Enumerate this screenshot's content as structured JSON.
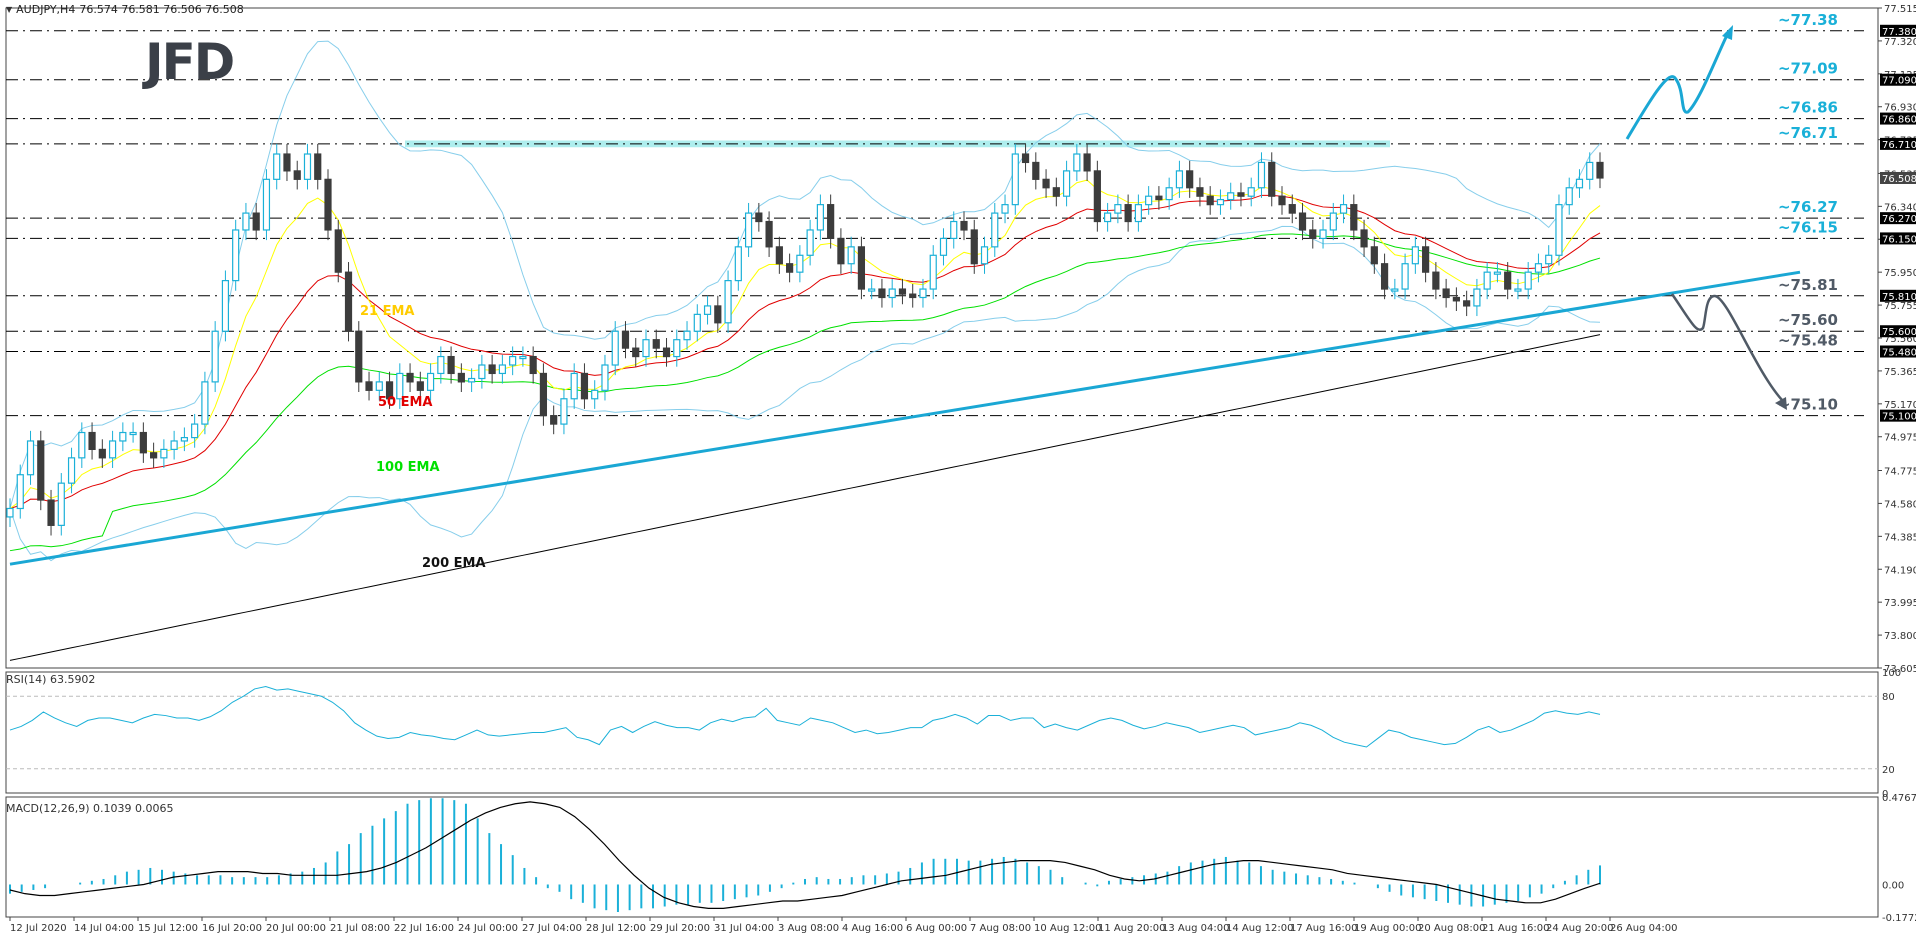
{
  "header": {
    "symbol": "AUDJPY,H4",
    "ohlc": "76.574 76.581 76.506 76.508",
    "logo": "JFD"
  },
  "indicators": {
    "rsi_title": "RSI(14) 63.5902",
    "macd_title": "MACD(12,26,9) 0.1039 0.0065"
  },
  "ema_labels": {
    "ema21": "21 EMA",
    "ema50": "50 EMA",
    "ema100": "100 EMA",
    "ema200": "200 EMA"
  },
  "colors": {
    "bull": "#1ab0d8",
    "bear": "#3c3c3c",
    "ema21": "#ffff00",
    "ema50": "#e00000",
    "ema100": "#00e000",
    "ema200": "#000000",
    "bollinger": "#87ceeb",
    "trendline": "#1aa7d4",
    "resistance_zone": "#aeeeee",
    "level_label_up": "#1ab0d8",
    "level_label_down": "#505a66",
    "rsi": "#1ab0d8",
    "macd_hist": "#1ab0d8",
    "macd_signal": "#000000",
    "axis_label_bg": "#000000"
  },
  "chart_data": [
    {
      "type": "candlestick",
      "title": "AUDJPY,H4 76.574 76.581 76.506 76.508",
      "xlabel": "",
      "ylabel": "",
      "ylim": [
        73.605,
        77.515
      ],
      "y_ticks": [
        "77.515",
        "77.320",
        "77.125",
        "76.930",
        "76.735",
        "76.535",
        "76.340",
        "76.145",
        "75.950",
        "75.755",
        "75.560",
        "75.365",
        "75.170",
        "74.975",
        "74.775",
        "74.580",
        "74.385",
        "74.190",
        "73.995",
        "73.800",
        "73.605"
      ],
      "x_ticks": [
        "12 Jul 2020",
        "14 Jul 04:00",
        "15 Jul 12:00",
        "16 Jul 20:00",
        "20 Jul 00:00",
        "21 Jul 08:00",
        "22 Jul 16:00",
        "24 Jul 00:00",
        "27 Jul 04:00",
        "28 Jul 12:00",
        "29 Jul 20:00",
        "31 Jul 04:00",
        "3 Aug 08:00",
        "4 Aug 16:00",
        "6 Aug 00:00",
        "7 Aug 08:00",
        "10 Aug 12:00",
        "11 Aug 20:00",
        "13 Aug 04:00",
        "14 Aug 12:00",
        "17 Aug 16:00",
        "19 Aug 00:00",
        "20 Aug 08:00",
        "21 Aug 16:00",
        "24 Aug 20:00",
        "26 Aug 04:00"
      ],
      "horizontal_levels": [
        {
          "value": 77.38,
          "label": "~77.38",
          "axis_label": "77.380",
          "tone": "up"
        },
        {
          "value": 77.09,
          "label": "~77.09",
          "axis_label": "77.090",
          "tone": "up"
        },
        {
          "value": 76.86,
          "label": "~76.86",
          "axis_label": "76.860",
          "tone": "up"
        },
        {
          "value": 76.71,
          "label": "~76.71",
          "axis_label": "76.710",
          "tone": "up"
        },
        {
          "value": 76.27,
          "label": "~76.27",
          "axis_label": "76.270",
          "tone": "up"
        },
        {
          "value": 76.15,
          "label": "~76.15",
          "axis_label": "76.150",
          "tone": "up"
        },
        {
          "value": 75.81,
          "label": "~75.81",
          "axis_label": "75.810",
          "tone": "down"
        },
        {
          "value": 75.6,
          "label": "~75.60",
          "axis_label": "75.600",
          "tone": "down"
        },
        {
          "value": 75.48,
          "label": "~75.48",
          "axis_label": "75.480",
          "tone": "down"
        },
        {
          "value": 75.1,
          "label": "~75.10",
          "axis_label": "75.100",
          "tone": "down"
        }
      ],
      "current_price": {
        "value": 76.508,
        "label": "76.508"
      },
      "resistance_zone": {
        "from": 76.69,
        "to": 76.73
      },
      "uptrend_line": {
        "x1": 0.0,
        "y1": 74.22,
        "x2": 1.0,
        "y2": 75.95
      },
      "close_path": [
        74.55,
        74.75,
        74.95,
        74.6,
        74.45,
        74.7,
        74.85,
        75.0,
        74.9,
        74.85,
        74.95,
        75.0,
        75.0,
        74.88,
        74.85,
        74.9,
        74.95,
        74.97,
        75.05,
        75.3,
        75.6,
        75.9,
        76.2,
        76.3,
        76.2,
        76.5,
        76.65,
        76.55,
        76.5,
        76.65,
        76.5,
        76.2,
        75.95,
        75.6,
        75.3,
        75.25,
        75.3,
        75.2,
        75.35,
        75.3,
        75.25,
        75.35,
        75.45,
        75.35,
        75.3,
        75.32,
        75.4,
        75.35,
        75.4,
        75.45,
        75.45,
        75.35,
        75.1,
        75.05,
        75.2,
        75.35,
        75.2,
        75.25,
        75.4,
        75.6,
        75.5,
        75.45,
        75.55,
        75.5,
        75.45,
        75.55,
        75.6,
        75.7,
        75.75,
        75.65,
        75.9,
        76.1,
        76.3,
        76.25,
        76.1,
        76.0,
        75.95,
        76.05,
        76.2,
        76.35,
        76.15,
        76.0,
        76.1,
        75.85,
        75.85,
        75.8,
        75.85,
        75.82,
        75.8,
        75.85,
        76.05,
        76.15,
        76.25,
        76.2,
        76.0,
        76.1,
        76.3,
        76.35,
        76.65,
        76.6,
        76.5,
        76.45,
        76.4,
        76.55,
        76.65,
        76.55,
        76.25,
        76.3,
        76.35,
        76.25,
        76.35,
        76.4,
        76.38,
        76.45,
        76.55,
        76.45,
        76.4,
        76.35,
        76.38,
        76.42,
        76.4,
        76.45,
        76.6,
        76.4,
        76.35,
        76.3,
        76.2,
        76.15,
        76.2,
        76.3,
        76.35,
        76.2,
        76.1,
        76.0,
        75.85,
        75.85,
        76.0,
        76.1,
        75.95,
        75.85,
        75.8,
        75.78,
        75.75,
        75.85,
        75.95,
        75.95,
        75.85,
        75.85,
        75.95,
        76.0,
        76.05,
        76.35,
        76.45,
        76.5,
        76.6,
        76.508
      ]
    },
    {
      "type": "line",
      "title": "RSI(14) 63.5902",
      "ylim": [
        0,
        100
      ],
      "y_ticks": [
        "100",
        "80",
        "20",
        "0"
      ],
      "levels": [
        80,
        20
      ],
      "values": [
        52,
        55,
        60,
        67,
        62,
        58,
        55,
        60,
        62,
        62,
        60,
        58,
        62,
        65,
        64,
        62,
        62,
        60,
        63,
        68,
        75,
        80,
        86,
        88,
        85,
        86,
        84,
        82,
        80,
        75,
        68,
        58,
        52,
        47,
        45,
        46,
        50,
        48,
        47,
        45,
        44,
        48,
        52,
        48,
        47,
        48,
        49,
        50,
        50,
        52,
        54,
        46,
        44,
        40,
        52,
        55,
        50,
        55,
        59,
        56,
        54,
        54,
        52,
        58,
        61,
        59,
        62,
        63,
        70,
        60,
        58,
        56,
        62,
        60,
        58,
        54,
        50,
        52,
        49,
        50,
        52,
        54,
        54,
        60,
        62,
        65,
        62,
        57,
        64,
        64,
        60,
        62,
        62,
        54,
        57,
        54,
        52,
        56,
        60,
        62,
        60,
        56,
        53,
        55,
        58,
        56,
        54,
        50,
        52,
        54,
        56,
        54,
        48,
        50,
        52,
        54,
        58,
        56,
        52,
        46,
        42,
        40,
        38,
        45,
        52,
        50,
        46,
        44,
        42,
        40,
        41,
        46,
        52,
        55,
        50,
        52,
        56,
        60,
        66,
        68,
        66,
        65,
        67,
        65
      ]
    },
    {
      "type": "bar",
      "title": "MACD(12,26,9) 0.1039 0.0065",
      "ylim": [
        -0.1772,
        0.4767
      ],
      "y_ticks": [
        "0.4767",
        "0.00",
        "-0.1772"
      ],
      "series": [
        {
          "name": "MACD histogram",
          "values": [
            -0.05,
            -0.04,
            -0.03,
            -0.02,
            0.0,
            0.0,
            0.01,
            0.02,
            0.03,
            0.05,
            0.07,
            0.08,
            0.09,
            0.08,
            0.07,
            0.06,
            0.05,
            0.05,
            0.05,
            0.04,
            0.04,
            0.04,
            0.04,
            0.05,
            0.06,
            0.07,
            0.09,
            0.12,
            0.18,
            0.22,
            0.28,
            0.32,
            0.36,
            0.4,
            0.44,
            0.46,
            0.47,
            0.47,
            0.46,
            0.44,
            0.36,
            0.28,
            0.22,
            0.16,
            0.09,
            0.04,
            -0.02,
            -0.04,
            -0.08,
            -0.1,
            -0.13,
            -0.14,
            -0.15,
            -0.14,
            -0.13,
            -0.13,
            -0.12,
            -0.11,
            -0.11,
            -0.1,
            -0.1,
            -0.09,
            -0.08,
            -0.07,
            -0.06,
            -0.04,
            -0.02,
            0.01,
            0.03,
            0.04,
            0.03,
            0.03,
            0.04,
            0.05,
            0.05,
            0.06,
            0.07,
            0.09,
            0.12,
            0.14,
            0.14,
            0.14,
            0.13,
            0.13,
            0.14,
            0.15,
            0.14,
            0.12,
            0.1,
            0.08,
            0.04,
            0.0,
            0.01,
            -0.01,
            0.02,
            0.03,
            0.04,
            0.05,
            0.06,
            0.07,
            0.1,
            0.12,
            0.13,
            0.14,
            0.15,
            0.13,
            0.12,
            0.1,
            0.08,
            0.07,
            0.06,
            0.05,
            0.04,
            0.03,
            0.02,
            0.01,
            0.0,
            -0.02,
            -0.04,
            -0.06,
            -0.07,
            -0.08,
            -0.09,
            -0.1,
            -0.11,
            -0.12,
            -0.12,
            -0.11,
            -0.1,
            -0.09,
            -0.07,
            -0.05,
            -0.02,
            0.02,
            0.05,
            0.08,
            0.1039
          ]
        },
        {
          "name": "Signal",
          "values": [
            -0.03,
            -0.05,
            -0.06,
            -0.06,
            -0.05,
            -0.04,
            -0.03,
            -0.02,
            -0.01,
            0.0,
            0.02,
            0.04,
            0.05,
            0.06,
            0.07,
            0.07,
            0.07,
            0.06,
            0.06,
            0.05,
            0.05,
            0.05,
            0.05,
            0.06,
            0.07,
            0.09,
            0.12,
            0.16,
            0.2,
            0.25,
            0.3,
            0.35,
            0.39,
            0.42,
            0.44,
            0.45,
            0.44,
            0.42,
            0.37,
            0.3,
            0.22,
            0.13,
            0.05,
            -0.02,
            -0.07,
            -0.1,
            -0.12,
            -0.13,
            -0.13,
            -0.12,
            -0.11,
            -0.1,
            -0.09,
            -0.09,
            -0.08,
            -0.07,
            -0.06,
            -0.04,
            -0.02,
            0.0,
            0.02,
            0.03,
            0.04,
            0.05,
            0.07,
            0.09,
            0.11,
            0.12,
            0.13,
            0.13,
            0.13,
            0.12,
            0.1,
            0.08,
            0.05,
            0.03,
            0.02,
            0.03,
            0.05,
            0.07,
            0.09,
            0.11,
            0.12,
            0.13,
            0.13,
            0.12,
            0.11,
            0.1,
            0.09,
            0.08,
            0.06,
            0.05,
            0.04,
            0.03,
            0.02,
            0.01,
            0.0,
            -0.02,
            -0.04,
            -0.06,
            -0.08,
            -0.09,
            -0.1,
            -0.1,
            -0.08,
            -0.05,
            -0.02,
            0.0065
          ]
        }
      ]
    }
  ]
}
